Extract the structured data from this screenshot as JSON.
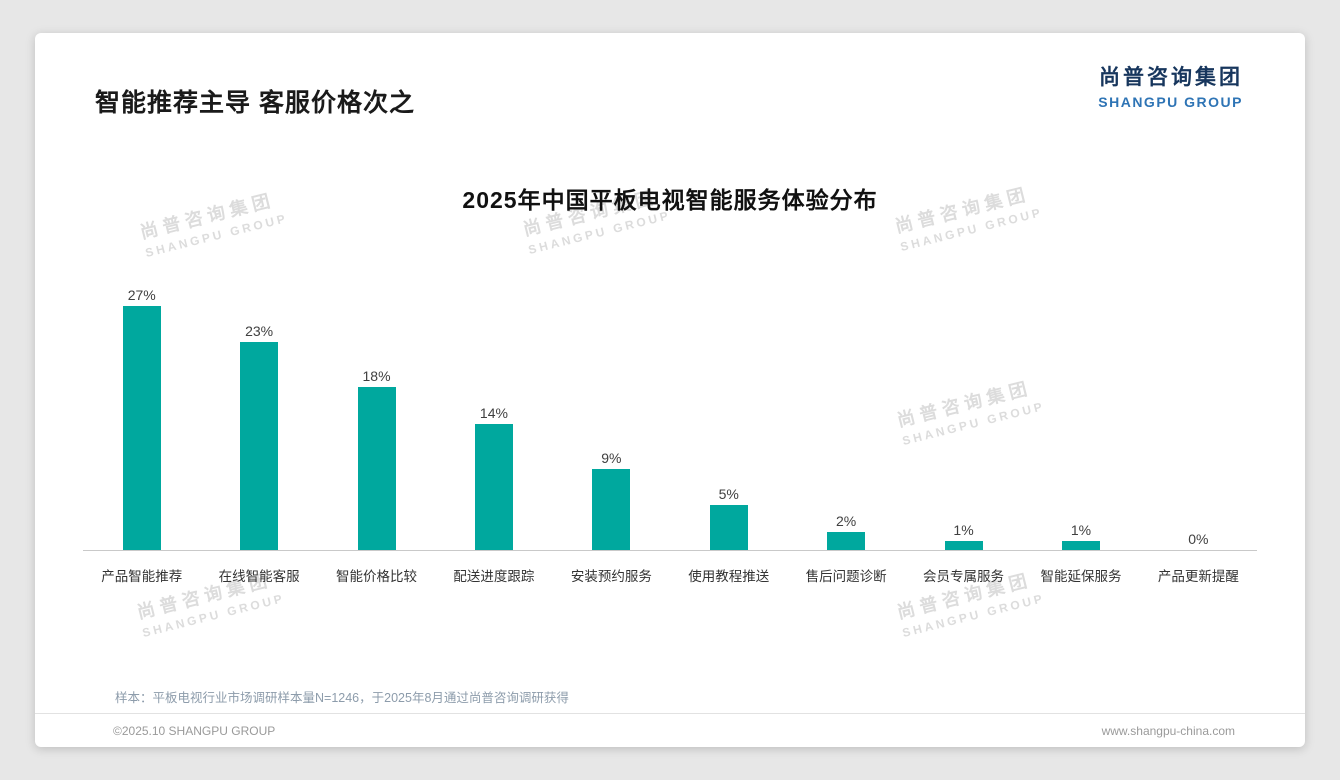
{
  "page": {
    "heading": "智能推荐主导 客服价格次之",
    "logo": {
      "cn": "尚普咨询集团",
      "en": "SHANGPU GROUP"
    },
    "watermark": {
      "cn": "尚普咨询集团",
      "en": "SHANGPU GROUP"
    },
    "footnote": "样本：平板电视行业市场调研样本量N=1246，于2025年8月通过尚普咨询调研获得",
    "copyright": "©2025.10 SHANGPU GROUP",
    "website": "www.shangpu-china.com"
  },
  "chart_data": {
    "type": "bar",
    "title": "2025年中国平板电视智能服务体验分布",
    "categories": [
      "产品智能推荐",
      "在线智能客服",
      "智能价格比较",
      "配送进度跟踪",
      "安装预约服务",
      "使用教程推送",
      "售后问题诊断",
      "会员专属服务",
      "智能延保服务",
      "产品更新提醒"
    ],
    "values": [
      27,
      23,
      18,
      14,
      9,
      5,
      2,
      1,
      1,
      0
    ],
    "unit": "%",
    "bar_color": "#00A89E",
    "xlabel": "",
    "ylabel": "",
    "ylim": [
      0,
      30
    ],
    "grid": false,
    "legend_position": "none",
    "value_labels_shown": true
  }
}
